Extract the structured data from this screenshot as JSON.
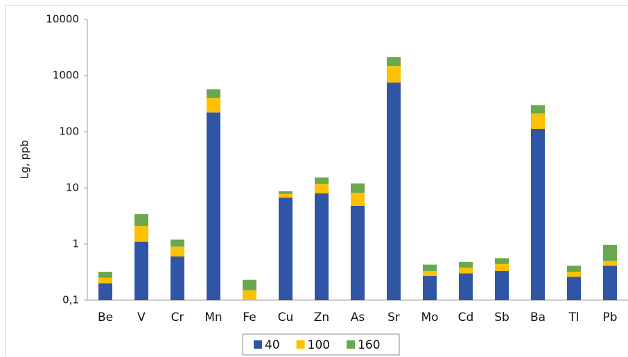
{
  "chart_data": {
    "type": "bar",
    "stacked": true,
    "log_scale": true,
    "grid": false,
    "y_label": "Lg, ppb",
    "categories": [
      "Be",
      "V",
      "Cr",
      "Mn",
      "Fe",
      "Cu",
      "Zn",
      "As",
      "Sr",
      "Mo",
      "Cd",
      "Sb",
      "Ba",
      "Tl",
      "Pb"
    ],
    "series": [
      {
        "name": "40",
        "color": "#2f55a4",
        "values": [
          0.2,
          1.1,
          0.6,
          220,
          0.05,
          6.7,
          8,
          4.8,
          750,
          0.27,
          0.3,
          0.33,
          112,
          0.26,
          0.41
        ]
      },
      {
        "name": "100",
        "color": "#ffc000",
        "values": [
          0.05,
          1.0,
          0.3,
          180,
          0.1,
          1.1,
          3.8,
          3.4,
          730,
          0.06,
          0.08,
          0.11,
          100,
          0.06,
          0.09
        ]
      },
      {
        "name": "160",
        "color": "#6aa84f",
        "values": [
          0.07,
          1.3,
          0.3,
          170,
          0.08,
          0.9,
          3.5,
          3.8,
          660,
          0.1,
          0.1,
          0.12,
          85,
          0.09,
          0.47
        ]
      }
    ],
    "ylim": [
      0.1,
      10000
    ],
    "yticks": [
      {
        "value": 0.1,
        "label": "0,1"
      },
      1,
      10,
      100,
      1000,
      10000
    ],
    "legend": "bottom"
  }
}
